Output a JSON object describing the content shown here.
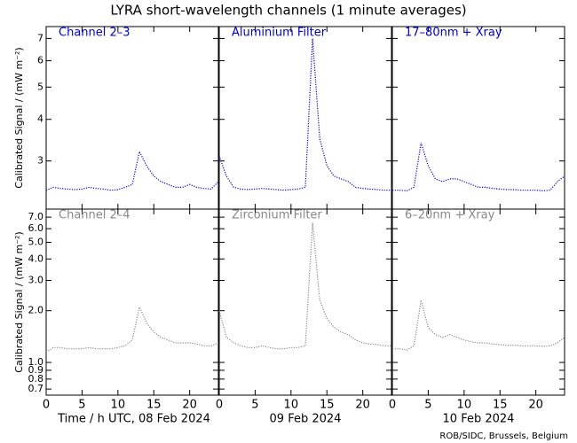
{
  "title": "LYRA short-wavelength channels (1 minute averages)",
  "credit": "ROB/SIDC, Brussels, Belgium",
  "chart_data": [
    {
      "type": "line",
      "label": "Channel 2–3",
      "color": "#0000cc",
      "log_y": true,
      "y_label": "Calibrated Signal / (mW m⁻²)",
      "xlim": [
        0,
        24
      ],
      "xticks": [
        0,
        5,
        10,
        15,
        20
      ],
      "ylim": [
        2.15,
        7.6
      ],
      "yticks": [
        3,
        4,
        5,
        6,
        7
      ],
      "x": [
        0,
        1,
        2,
        3,
        4,
        5,
        6,
        7,
        8,
        9,
        10,
        11,
        12,
        13,
        14,
        15,
        16,
        17,
        18,
        19,
        20,
        21,
        22,
        23,
        24
      ],
      "values": [
        2.45,
        2.5,
        2.48,
        2.47,
        2.46,
        2.47,
        2.5,
        2.48,
        2.47,
        2.45,
        2.46,
        2.5,
        2.55,
        3.2,
        2.9,
        2.7,
        2.6,
        2.55,
        2.5,
        2.5,
        2.55,
        2.5,
        2.48,
        2.47,
        2.6
      ]
    },
    {
      "type": "line",
      "label": "Aluminium Filter",
      "color": "#0000cc",
      "log_y": true,
      "xlim": [
        0,
        24
      ],
      "xticks": [
        0,
        5,
        10,
        15,
        20
      ],
      "ylim": [
        2.15,
        7.6
      ],
      "yticks": [
        3,
        4,
        5,
        6,
        7
      ],
      "x": [
        0,
        1,
        2,
        3,
        4,
        5,
        6,
        7,
        8,
        9,
        10,
        11,
        12,
        13,
        14,
        15,
        16,
        17,
        18,
        19,
        20,
        21,
        22,
        23,
        24
      ],
      "values": [
        3.1,
        2.7,
        2.5,
        2.47,
        2.46,
        2.47,
        2.48,
        2.47,
        2.46,
        2.45,
        2.46,
        2.47,
        2.5,
        7.0,
        3.5,
        2.9,
        2.7,
        2.65,
        2.6,
        2.5,
        2.48,
        2.47,
        2.46,
        2.45,
        2.45
      ]
    },
    {
      "type": "line",
      "label": "17–80nm + Xray",
      "color": "#0000cc",
      "log_y": true,
      "xlim": [
        0,
        24
      ],
      "xticks": [
        0,
        5,
        10,
        15,
        20
      ],
      "ylim": [
        2.15,
        7.6
      ],
      "yticks": [
        3,
        4,
        5,
        6,
        7
      ],
      "x": [
        0,
        1,
        2,
        3,
        4,
        5,
        6,
        7,
        8,
        9,
        10,
        11,
        12,
        13,
        14,
        15,
        16,
        17,
        18,
        19,
        20,
        21,
        22,
        23,
        24
      ],
      "values": [
        2.45,
        2.45,
        2.44,
        2.5,
        3.4,
        2.9,
        2.65,
        2.6,
        2.65,
        2.65,
        2.6,
        2.55,
        2.5,
        2.5,
        2.48,
        2.47,
        2.46,
        2.46,
        2.45,
        2.45,
        2.45,
        2.44,
        2.45,
        2.6,
        2.7
      ]
    },
    {
      "type": "line",
      "label": "Channel 2–4",
      "color": "#888888",
      "log_y": true,
      "y_label": "Calibrated Signal / (mW m⁻²)",
      "x_label": "Time / h UTC, 08 Feb 2024",
      "xlim": [
        0,
        24
      ],
      "xticks": [
        0,
        5,
        10,
        15,
        20
      ],
      "ylim": [
        0.645,
        7.8
      ],
      "yticks": [
        0.7,
        0.8,
        0.9,
        {
          "value": 1,
          "label": "1.0"
        },
        {
          "value": 2,
          "label": "2.0"
        },
        {
          "value": 3,
          "label": "3.0"
        },
        {
          "value": 4,
          "label": "4.0"
        },
        {
          "value": 5,
          "label": "5.0"
        },
        {
          "value": 6,
          "label": "6.0"
        },
        {
          "value": 7,
          "label": "7.0"
        }
      ],
      "x": [
        0,
        1,
        2,
        3,
        4,
        5,
        6,
        7,
        8,
        9,
        10,
        11,
        12,
        13,
        14,
        15,
        16,
        17,
        18,
        19,
        20,
        21,
        22,
        23,
        24
      ],
      "values": [
        1.15,
        1.22,
        1.22,
        1.2,
        1.2,
        1.2,
        1.22,
        1.2,
        1.2,
        1.2,
        1.22,
        1.25,
        1.35,
        2.1,
        1.7,
        1.5,
        1.4,
        1.35,
        1.3,
        1.3,
        1.3,
        1.28,
        1.25,
        1.25,
        1.3
      ]
    },
    {
      "type": "line",
      "label": "Zirconium Filter",
      "color": "#888888",
      "log_y": true,
      "x_label": "09 Feb 2024",
      "xlim": [
        0,
        24
      ],
      "xticks": [
        0,
        5,
        10,
        15,
        20
      ],
      "ylim": [
        0.645,
        7.8
      ],
      "yticks": [
        0.7,
        0.8,
        0.9,
        {
          "value": 1,
          "label": "1.0"
        },
        {
          "value": 2,
          "label": "2.0"
        },
        {
          "value": 3,
          "label": "3.0"
        },
        {
          "value": 4,
          "label": "4.0"
        },
        {
          "value": 5,
          "label": "5.0"
        },
        {
          "value": 6,
          "label": "6.0"
        },
        {
          "value": 7,
          "label": "7.0"
        }
      ],
      "x": [
        0,
        1,
        2,
        3,
        4,
        5,
        6,
        7,
        8,
        9,
        10,
        11,
        12,
        13,
        14,
        15,
        16,
        17,
        18,
        19,
        20,
        21,
        22,
        23,
        24
      ],
      "values": [
        2.0,
        1.4,
        1.3,
        1.25,
        1.22,
        1.22,
        1.25,
        1.22,
        1.2,
        1.2,
        1.22,
        1.22,
        1.25,
        6.5,
        2.3,
        1.8,
        1.6,
        1.5,
        1.45,
        1.35,
        1.3,
        1.28,
        1.27,
        1.25,
        1.25
      ]
    },
    {
      "type": "line",
      "label": "6–20nm + Xray",
      "color": "#888888",
      "log_y": true,
      "x_label": "10 Feb 2024",
      "xlim": [
        0,
        24
      ],
      "xticks": [
        0,
        5,
        10,
        15,
        20
      ],
      "ylim": [
        0.645,
        7.8
      ],
      "yticks": [
        0.7,
        0.8,
        0.9,
        {
          "value": 1,
          "label": "1.0"
        },
        {
          "value": 2,
          "label": "2.0"
        },
        {
          "value": 3,
          "label": "3.0"
        },
        {
          "value": 4,
          "label": "4.0"
        },
        {
          "value": 5,
          "label": "5.0"
        },
        {
          "value": 6,
          "label": "6.0"
        },
        {
          "value": 7,
          "label": "7.0"
        }
      ],
      "x": [
        0,
        1,
        2,
        3,
        4,
        5,
        6,
        7,
        8,
        9,
        10,
        11,
        12,
        13,
        14,
        15,
        16,
        17,
        18,
        19,
        20,
        21,
        22,
        23,
        24
      ],
      "values": [
        1.2,
        1.2,
        1.18,
        1.25,
        2.3,
        1.6,
        1.45,
        1.4,
        1.45,
        1.4,
        1.35,
        1.32,
        1.3,
        1.3,
        1.28,
        1.27,
        1.26,
        1.26,
        1.25,
        1.25,
        1.25,
        1.24,
        1.25,
        1.3,
        1.4
      ]
    }
  ]
}
